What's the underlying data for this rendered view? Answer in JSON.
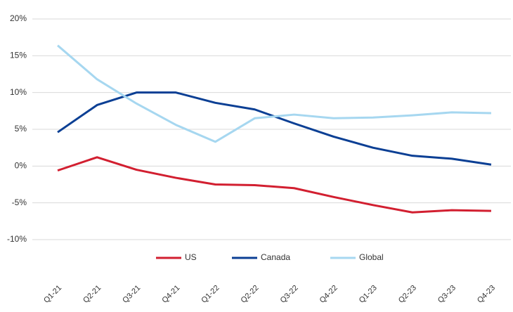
{
  "chart_data": {
    "type": "line",
    "categories": [
      "Q1-21",
      "Q2-21",
      "Q3-21",
      "Q4-21",
      "Q1-22",
      "Q2-22",
      "Q3-22",
      "Q4-22",
      "Q1-23",
      "Q2-23",
      "Q3-23",
      "Q4-23"
    ],
    "series": [
      {
        "name": "US",
        "color": "#d21f30",
        "values": [
          -0.6,
          1.2,
          -0.5,
          -1.6,
          -2.5,
          -2.6,
          -3.0,
          -4.2,
          -5.3,
          -6.3,
          -6.0,
          -6.1
        ]
      },
      {
        "name": "Canada",
        "color": "#0b3f94",
        "values": [
          4.6,
          8.3,
          10.0,
          10.0,
          8.6,
          7.7,
          5.8,
          4.0,
          2.5,
          1.4,
          1.0,
          0.2
        ]
      },
      {
        "name": "Global",
        "color": "#a6d7f0",
        "values": [
          16.4,
          11.8,
          8.5,
          5.6,
          3.3,
          6.5,
          7.0,
          6.5,
          6.6,
          6.9,
          7.3,
          7.2
        ]
      }
    ],
    "ylim": [
      -10,
      20
    ],
    "yticks": [
      {
        "value": -10,
        "label": "-10%"
      },
      {
        "value": -5,
        "label": "-5%"
      },
      {
        "value": 0,
        "label": "0%"
      },
      {
        "value": 5,
        "label": "5%"
      },
      {
        "value": 10,
        "label": "10%"
      },
      {
        "value": 15,
        "label": "15%"
      },
      {
        "value": 20,
        "label": "20%"
      }
    ],
    "grid": true,
    "legend": "bottom"
  }
}
